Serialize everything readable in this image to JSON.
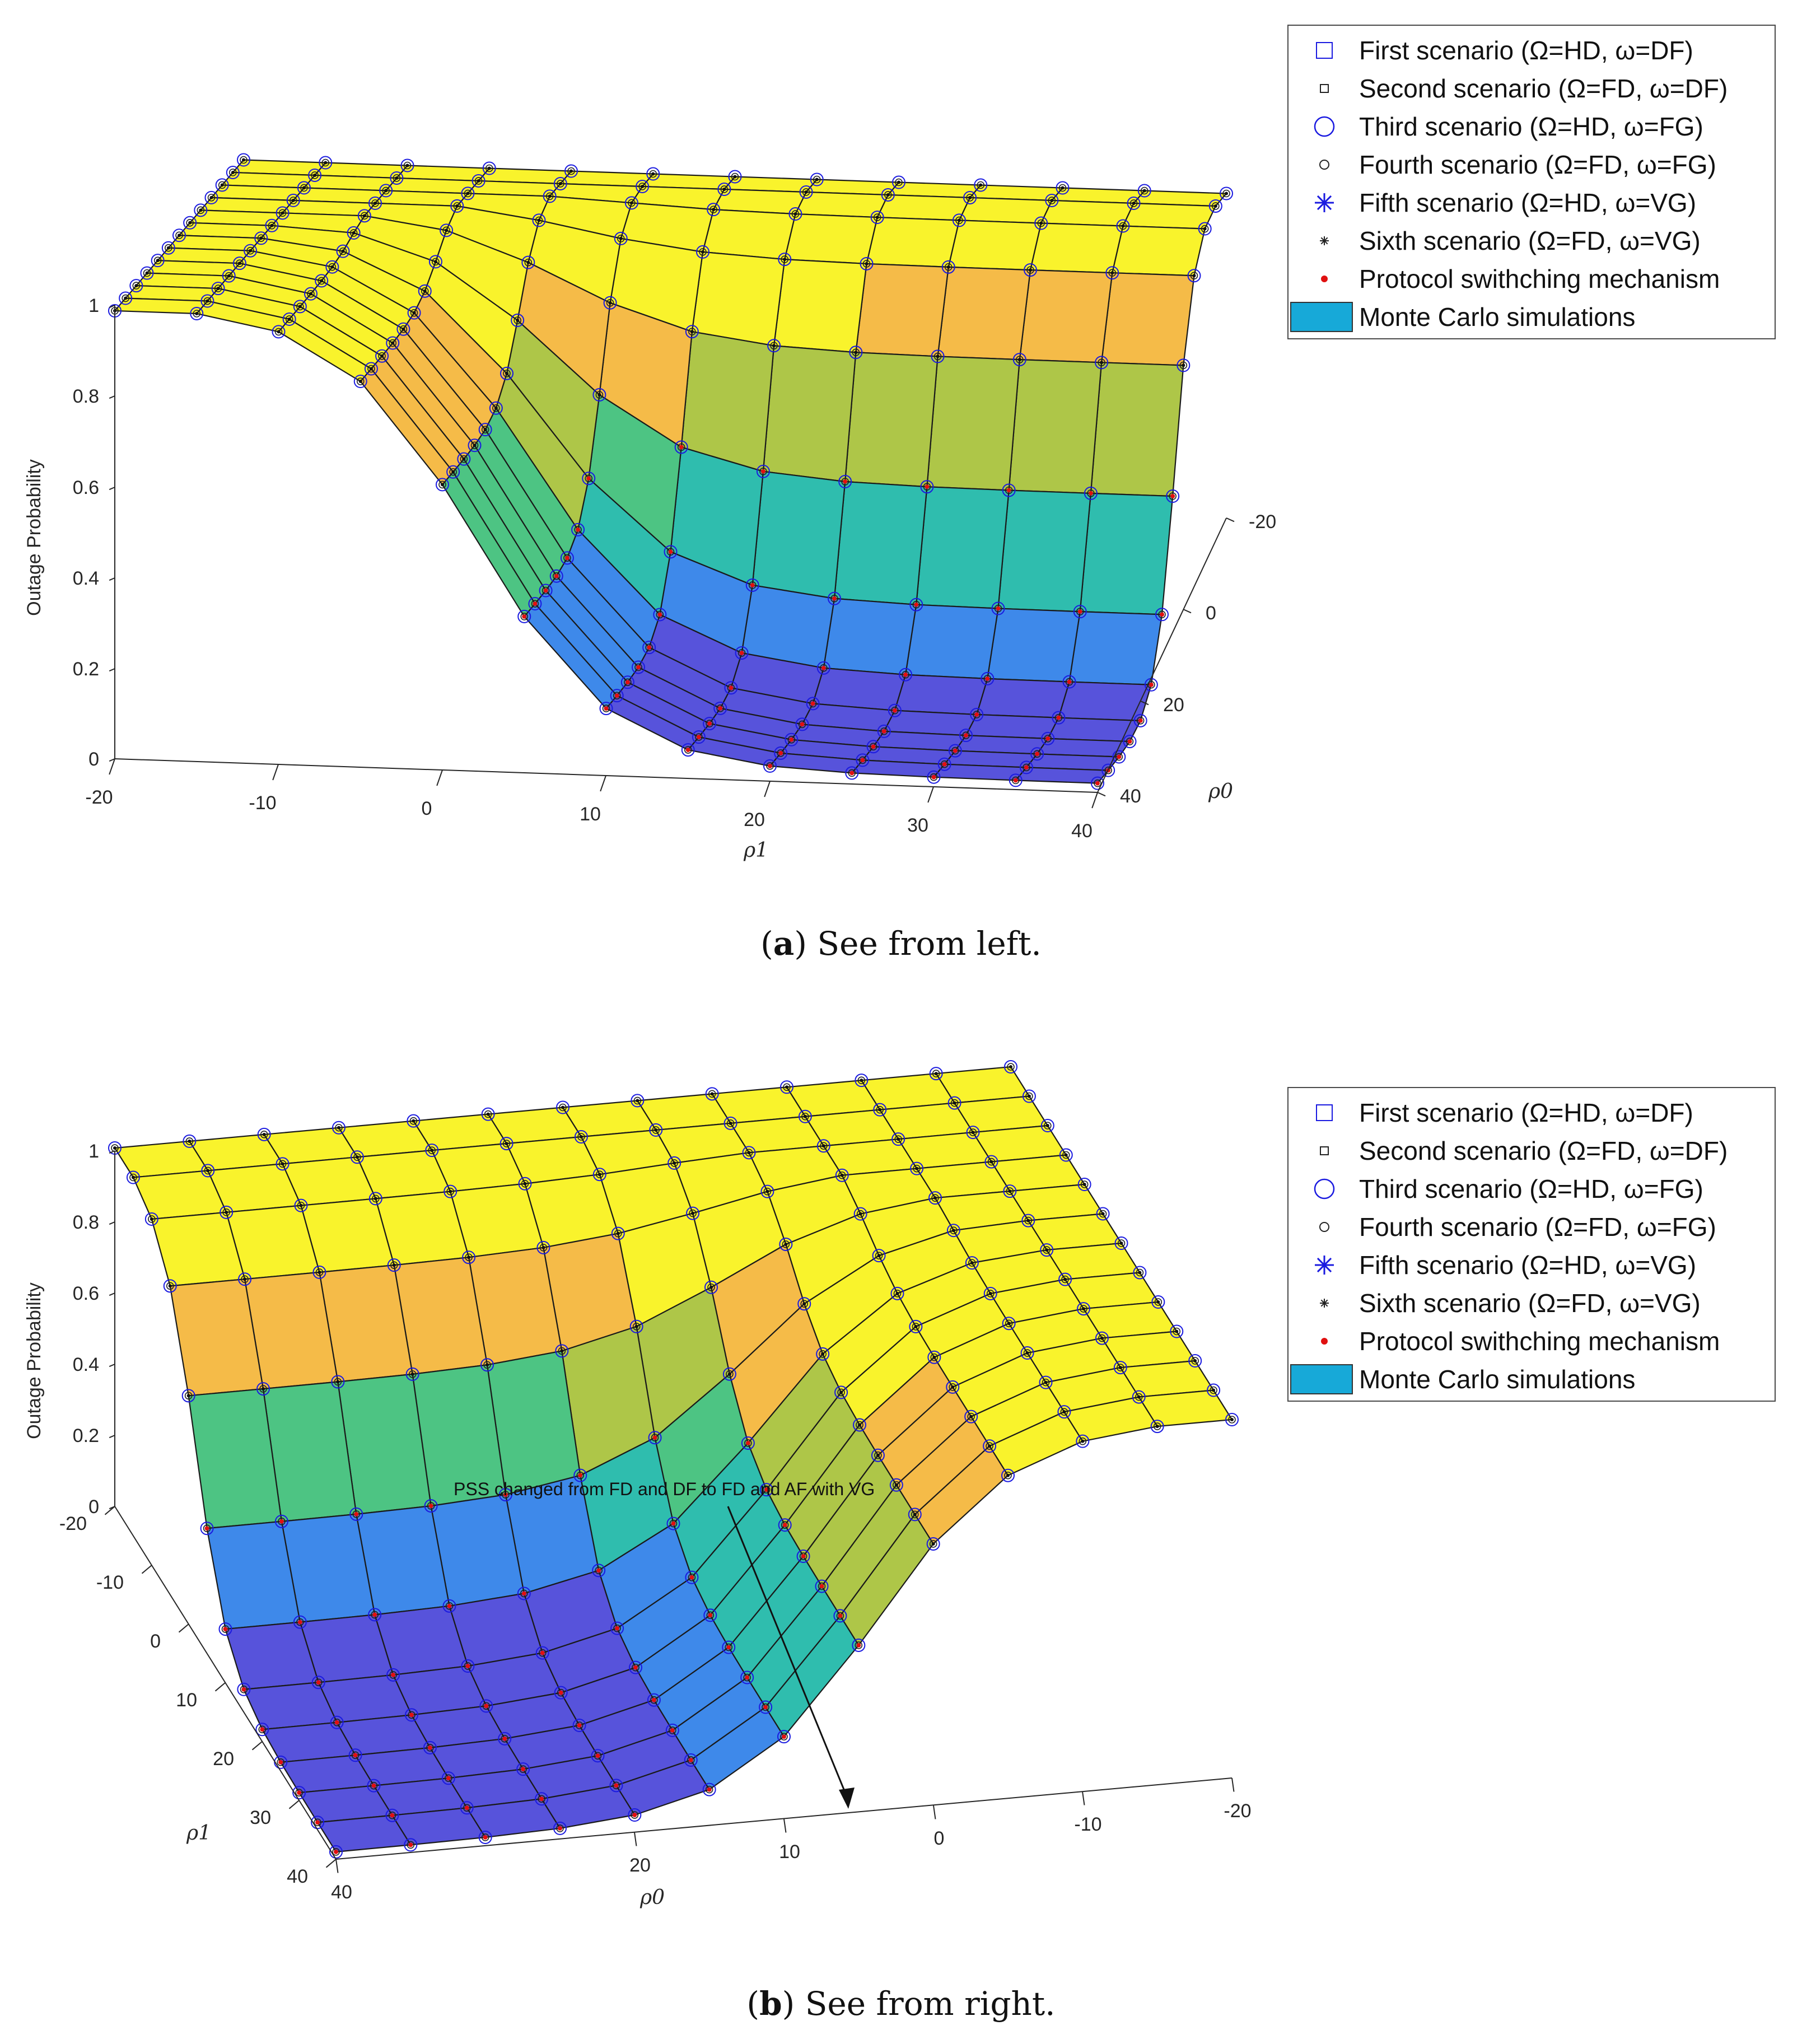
{
  "chart_data": [
    {
      "type": "surface",
      "panel": "a",
      "caption_label": "a",
      "caption_text": "See from left.",
      "zlabel": "Outage Probability",
      "xlabel": "ρ1",
      "ylabel": "ρ0",
      "x_ticks": [
        "-20",
        "-10",
        "0",
        "10",
        "20",
        "30",
        "40"
      ],
      "y_ticks": [
        "-20",
        "0",
        "20",
        "40"
      ],
      "z_ticks": [
        "0",
        "0.2",
        "0.4",
        "0.6",
        "0.8",
        "1"
      ],
      "xlim": [
        -20,
        40
      ],
      "ylim": [
        -20,
        40
      ],
      "zlim": [
        0,
        1
      ],
      "legend": [
        "First scenario (Ω=HD, ω=DF)",
        "Second scenario (Ω=FD, ω=DF)",
        "Third scenario (Ω=HD, ω=FG)",
        "Fourth scenario (Ω=FD, ω=FG)",
        "Fifth scenario (Ω=HD, ω=VG)",
        "Sixth scenario (Ω=FD, ω=VG)",
        "Protocol swithching mechanism",
        "Monte Carlo simulations"
      ],
      "legend_position": "top-right",
      "grid_values": [
        -20,
        -15,
        -10,
        -5,
        0,
        5,
        10,
        15,
        20,
        25,
        30,
        35,
        40
      ],
      "annotation": ""
    },
    {
      "type": "surface",
      "panel": "b",
      "caption_label": "b",
      "caption_text": "See from right.",
      "zlabel": "Outage Probability",
      "xlabel": "ρ0",
      "ylabel": "ρ1",
      "x_ticks": [
        "40",
        "20",
        "10",
        "0",
        "-10",
        "-20"
      ],
      "y_ticks": [
        "-20",
        "-10",
        "0",
        "10",
        "20",
        "30",
        "40"
      ],
      "z_ticks": [
        "0",
        "0.2",
        "0.4",
        "0.6",
        "0.8",
        "1"
      ],
      "xlim": [
        -20,
        40
      ],
      "ylim": [
        -20,
        40
      ],
      "zlim": [
        0,
        1
      ],
      "legend": [
        "First scenario (Ω=HD, ω=DF)",
        "Second scenario (Ω=FD, ω=DF)",
        "Third scenario (Ω=HD, ω=FG)",
        "Fourth scenario (Ω=FD, ω=FG)",
        "Fifth scenario (Ω=HD, ω=VG)",
        "Sixth scenario (Ω=FD, ω=VG)",
        "Protocol swithching mechanism",
        "Monte Carlo simulations"
      ],
      "legend_position": "top-right",
      "grid_values": [
        -20,
        -15,
        -10,
        -5,
        0,
        5,
        10,
        15,
        20,
        25,
        30,
        35,
        40
      ],
      "annotation": "PSS changed from FD and DF to FD and AF with VG"
    }
  ],
  "colors": {
    "yellow": "#f9f21c",
    "olive": "#a8c23a",
    "orange": "#f4b63a",
    "green": "#3fc07a",
    "teal": "#1fb8a8",
    "blue": "#2f80e8",
    "indigo": "#4a46d8",
    "legend_blue": "#1a1ae0",
    "marker_red": "#e01010",
    "monte_carlo": "#17a9d8"
  }
}
